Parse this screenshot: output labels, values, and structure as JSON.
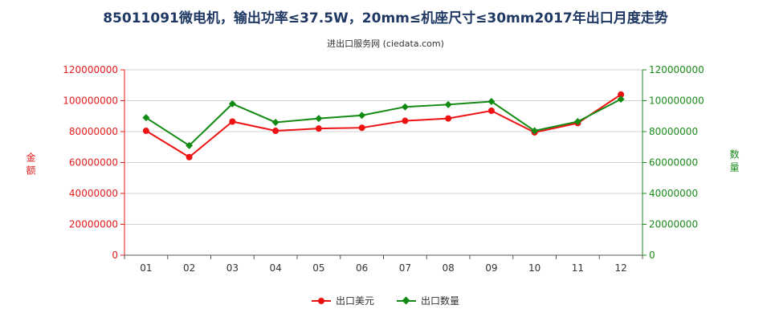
{
  "chart_data": {
    "type": "line",
    "title": "85011091微电机，输出功率≤37.5W，20mm≤机座尺寸≤30mm2017年出口月度走势",
    "subtitle": "进出口服务网 (ciedata.com)",
    "categories": [
      "01",
      "02",
      "03",
      "04",
      "05",
      "06",
      "07",
      "08",
      "09",
      "10",
      "11",
      "12"
    ],
    "y_left": {
      "label": "金额",
      "ylim": [
        0,
        120000000
      ],
      "ticks": [
        0,
        20000000,
        40000000,
        60000000,
        80000000,
        100000000,
        120000000
      ],
      "color": "#e31a1c"
    },
    "y_right": {
      "label": "数量",
      "ylim": [
        0,
        120000000
      ],
      "ticks": [
        0,
        20000000,
        40000000,
        60000000,
        80000000,
        100000000,
        120000000
      ],
      "color": "#1a8a1a"
    },
    "series": [
      {
        "name": "出口美元",
        "axis": "left",
        "color": "#ee1111",
        "marker": "circle",
        "values": [
          80500000,
          63500000,
          86500000,
          80500000,
          82000000,
          82500000,
          87000000,
          88500000,
          93500000,
          79500000,
          85500000,
          104000000
        ]
      },
      {
        "name": "出口数量",
        "axis": "right",
        "color": "#138a13",
        "marker": "diamond",
        "values": [
          89000000,
          71000000,
          98000000,
          86000000,
          88500000,
          90500000,
          96000000,
          97500000,
          99500000,
          80500000,
          86500000,
          101000000
        ]
      }
    ],
    "grid": true,
    "legend": "bottom-center"
  }
}
